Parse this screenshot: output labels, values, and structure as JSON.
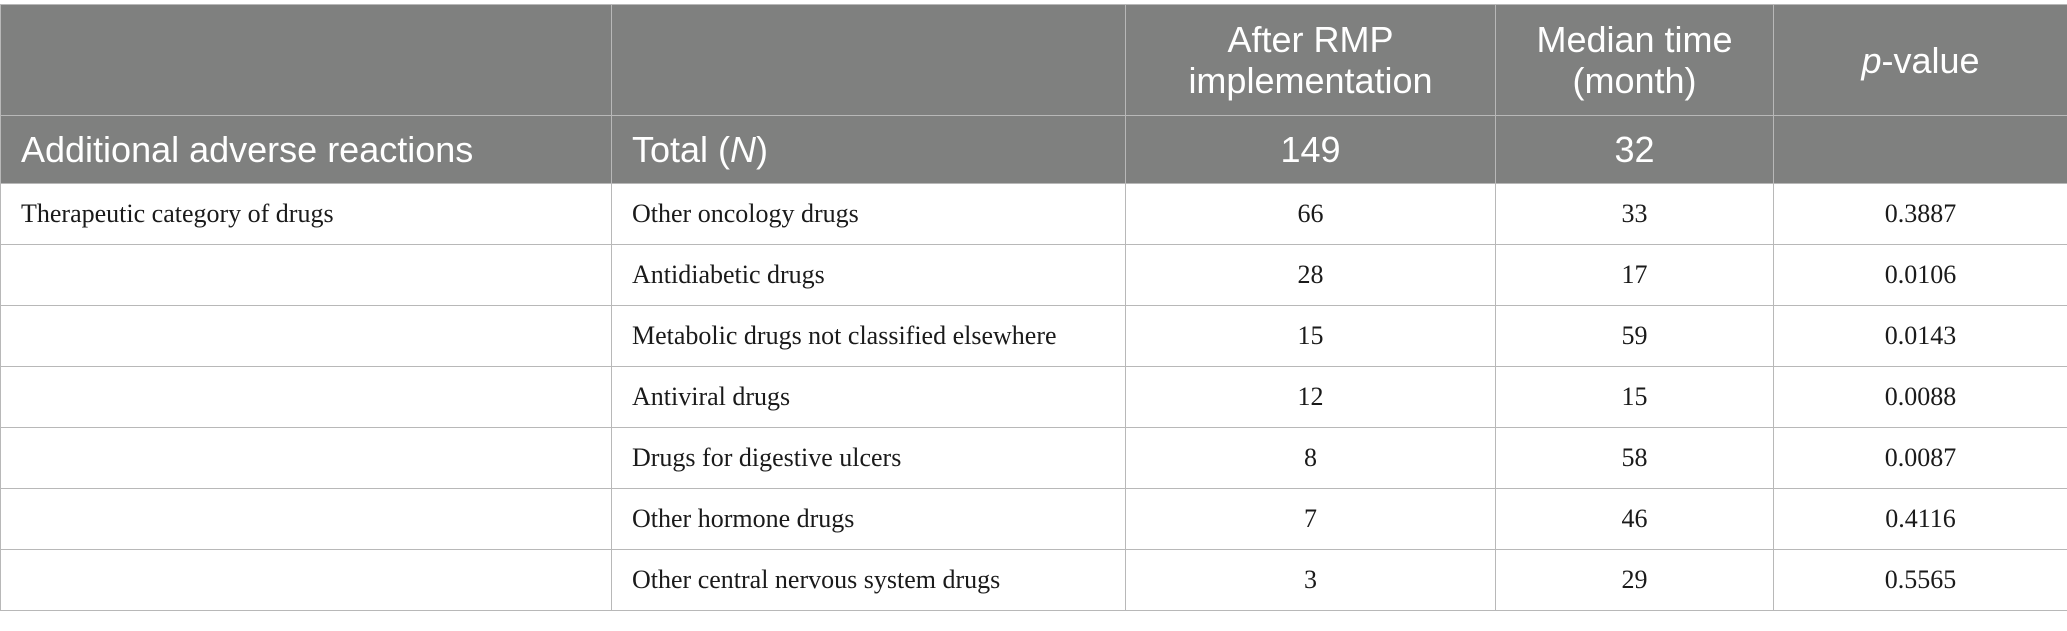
{
  "header": {
    "col3": [
      "After RMP",
      "implementation"
    ],
    "col4": [
      "Median time",
      "(month)"
    ],
    "col5_italic": "p",
    "col5_rest": "-value",
    "subrow": {
      "label": "Additional adverse reactions",
      "total_prefix": "Total (",
      "total_italic": "N",
      "total_suffix": ")",
      "n_value": "149",
      "median_value": "32",
      "p_value": ""
    }
  },
  "rows": [
    {
      "category": "Therapeutic category of drugs",
      "drug": "Other oncology drugs",
      "n": "66",
      "median": "33",
      "p": "0.3887"
    },
    {
      "category": "",
      "drug": "Antidiabetic drugs",
      "n": "28",
      "median": "17",
      "p": "0.0106"
    },
    {
      "category": "",
      "drug": "Metabolic drugs not classified elsewhere",
      "n": "15",
      "median": "59",
      "p": "0.0143"
    },
    {
      "category": "",
      "drug": "Antiviral drugs",
      "n": "12",
      "median": "15",
      "p": "0.0088"
    },
    {
      "category": "",
      "drug": "Drugs for digestive ulcers",
      "n": "8",
      "median": "58",
      "p": "0.0087"
    },
    {
      "category": "",
      "drug": "Other hormone drugs",
      "n": "7",
      "median": "46",
      "p": "0.4116"
    },
    {
      "category": "",
      "drug": "Other central nervous system drugs",
      "n": "3",
      "median": "29",
      "p": "0.5565"
    }
  ]
}
